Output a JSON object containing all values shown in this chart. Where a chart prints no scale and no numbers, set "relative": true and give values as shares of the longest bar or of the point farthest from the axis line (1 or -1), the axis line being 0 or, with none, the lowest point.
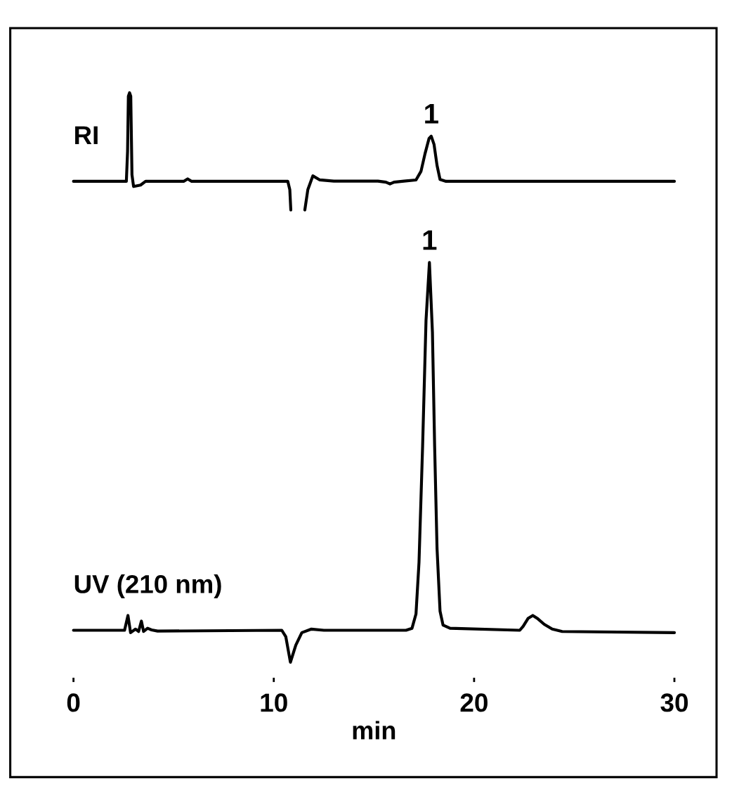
{
  "chart_data": [
    {
      "type": "line",
      "relative": true,
      "xlim": [
        0,
        30
      ],
      "series": [
        {
          "name": "RI",
          "color": "#000000",
          "x": [
            0,
            2.64,
            2.7,
            2.74,
            2.8,
            2.86,
            2.92,
            3.0,
            3.35,
            3.6,
            5.5,
            5.7,
            5.9,
            10.7,
            10.8,
            10.85,
            11.2,
            11.55,
            11.7,
            11.95,
            12.3,
            13.0,
            15.2,
            15.6,
            15.8,
            16.0,
            16.5,
            17.1,
            17.35,
            17.55,
            17.75,
            17.86,
            18.0,
            18.15,
            18.3,
            18.6,
            30
          ],
          "values": [
            0.244,
            0.244,
            0.5,
            0.97,
            1.0,
            0.97,
            0.3,
            0.2,
            0.212,
            0.244,
            0.244,
            0.265,
            0.244,
            0.244,
            0.173,
            0.0,
            null,
            0.0,
            0.173,
            0.291,
            0.256,
            0.246,
            0.246,
            0.237,
            0.222,
            0.237,
            0.246,
            0.256,
            0.33,
            0.48,
            0.61,
            0.63,
            0.56,
            0.38,
            0.26,
            0.244,
            0.244
          ]
        }
      ],
      "annotations": [
        {
          "text": "1",
          "x": 17.86,
          "y": 0.63
        }
      ]
    },
    {
      "type": "line",
      "relative": true,
      "tick_labels": "x",
      "xlabel": "min",
      "xlim": [
        0,
        30
      ],
      "xticks": [
        0,
        10,
        20,
        30
      ],
      "series": [
        {
          "name": "UV (210 nm)",
          "color": "#000000",
          "x": [
            0,
            2.55,
            2.72,
            2.85,
            3.1,
            3.25,
            3.39,
            3.5,
            3.7,
            3.9,
            4.2,
            10.4,
            10.6,
            10.83,
            11.1,
            11.4,
            11.88,
            12.5,
            16.6,
            16.9,
            17.1,
            17.25,
            17.43,
            17.6,
            17.77,
            17.92,
            18.03,
            18.15,
            18.3,
            18.45,
            18.8,
            22.28,
            22.45,
            22.7,
            22.93,
            23.15,
            23.5,
            23.9,
            24.4,
            30
          ],
          "values": [
            0.08,
            0.08,
            0.117,
            0.074,
            0.083,
            0.077,
            0.103,
            0.077,
            0.085,
            0.081,
            0.078,
            0.08,
            0.064,
            0.0,
            0.043,
            0.074,
            0.083,
            0.08,
            0.08,
            0.085,
            0.121,
            0.25,
            0.541,
            0.855,
            1.0,
            0.826,
            0.541,
            0.285,
            0.128,
            0.093,
            0.085,
            0.08,
            0.09,
            0.11,
            0.117,
            0.11,
            0.095,
            0.083,
            0.077,
            0.074
          ]
        }
      ],
      "annotations": [
        {
          "text": "1",
          "x": 17.77,
          "y": 1.0
        }
      ]
    }
  ]
}
